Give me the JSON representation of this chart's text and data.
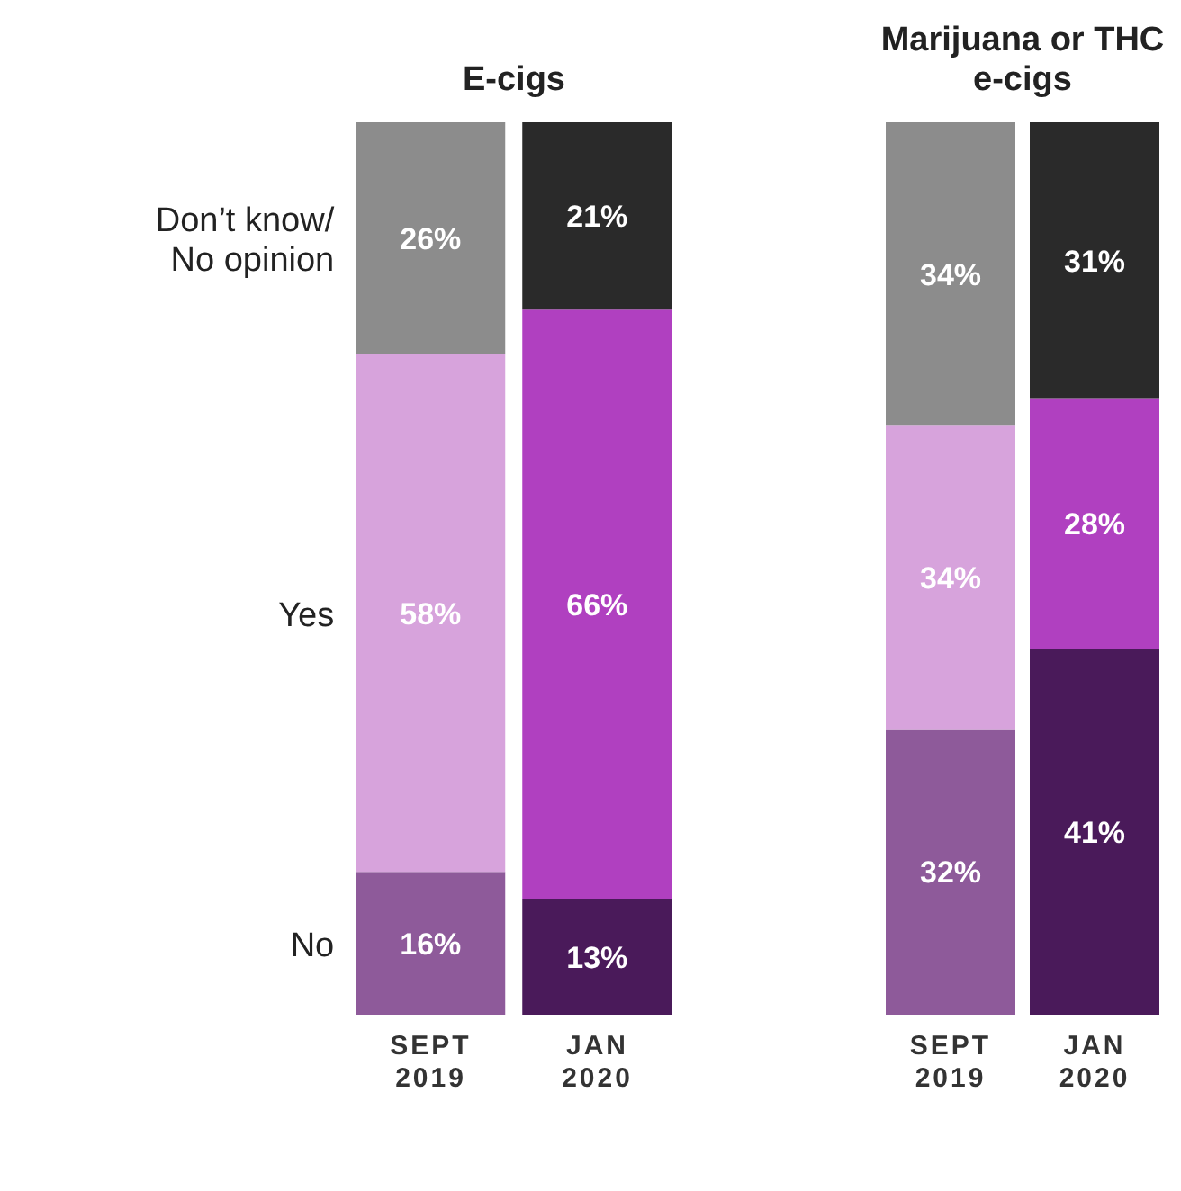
{
  "chart_data": [
    {
      "type": "bar",
      "title": "E-cigs",
      "stacked": true,
      "categories": [
        "SEPT 2019",
        "JAN 2020"
      ],
      "series": [
        {
          "name": "No",
          "colors": [
            "#8e5a9a",
            "#4a1a5a"
          ],
          "values": [
            16,
            13
          ],
          "value_labels": [
            "16%",
            "13%"
          ]
        },
        {
          "name": "Yes",
          "colors": [
            "#d7a3dc",
            "#b040c0"
          ],
          "values": [
            58,
            66
          ],
          "value_labels": [
            "58%",
            "66%"
          ]
        },
        {
          "name": "Don’t know/ No opinion",
          "colors": [
            "#8c8c8c",
            "#2a2a2a"
          ],
          "values": [
            26,
            21
          ],
          "value_labels": [
            "26%",
            "21%"
          ]
        }
      ]
    },
    {
      "type": "bar",
      "title": "Marijuana or THC e-cigs",
      "stacked": true,
      "categories": [
        "SEPT 2019",
        "JAN 2020"
      ],
      "series": [
        {
          "colors": [
            "#8e5a9a",
            "#4a1a5a"
          ],
          "values": [
            32,
            41
          ],
          "value_labels": [
            "32%",
            "41%"
          ]
        },
        {
          "colors": [
            "#d7a3dc",
            "#b040c0"
          ],
          "values": [
            34,
            28
          ],
          "value_labels": [
            "34%",
            "28%"
          ]
        },
        {
          "colors": [
            "#8c8c8c",
            "#2a2a2a"
          ],
          "values": [
            34,
            31
          ],
          "value_labels": [
            "34%",
            "31%"
          ]
        }
      ]
    }
  ]
}
